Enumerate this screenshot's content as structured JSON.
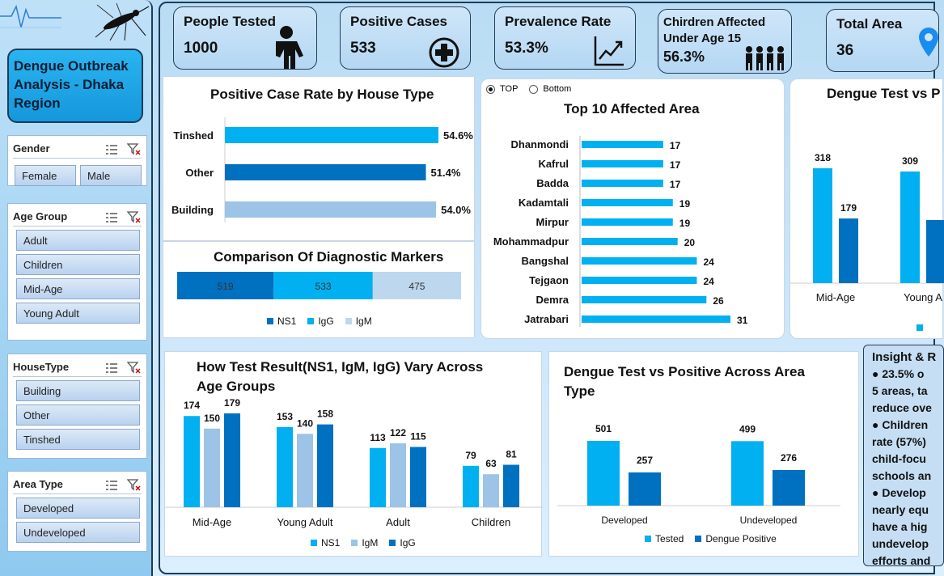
{
  "sidebar": {
    "title": "Dengue Outbreak Analysis - Dhaka Region",
    "slicers": {
      "gender": {
        "label": "Gender",
        "items": [
          "Female",
          "Male"
        ]
      },
      "age_group": {
        "label": "Age Group",
        "items": [
          "Adult",
          "Children",
          "Mid-Age",
          "Young Adult"
        ]
      },
      "house_type": {
        "label": "HouseType",
        "items": [
          "Building",
          "Other",
          "Tinshed"
        ]
      },
      "area_type": {
        "label": "Area Type",
        "items": [
          "Developed",
          "Undeveloped"
        ]
      }
    }
  },
  "kpis": {
    "people_tested": {
      "label": "People Tested",
      "value": "1000"
    },
    "positive_cases": {
      "label": "Positive Cases",
      "value": "533"
    },
    "prevalence": {
      "label": "Prevalence Rate",
      "value": "53.3%"
    },
    "children": {
      "label": "Chirdren Affected Under Age 15",
      "value": "56.3%"
    },
    "total_area": {
      "label": "Total Area",
      "value": "36"
    }
  },
  "colors": {
    "light": "#00b0f0",
    "dark": "#0070c0",
    "pale": "#9dc3e6",
    "paler": "#bdd7ee"
  },
  "charts": {
    "house_type": {
      "title": "Positive Case Rate by House Type"
    },
    "markers": {
      "title": "Comparison Of Diagnostic Markers",
      "legend": [
        "NS1",
        "IgG",
        "IgM"
      ]
    },
    "top_areas": {
      "title": "Top 10 Affected Area",
      "radio_top": "TOP",
      "radio_bottom": "Bottom"
    },
    "test_vs_positive_age": {
      "title": "Dengue Test vs P"
    },
    "age_groups": {
      "title_line1": "How Test Result(NS1, IgM, IgG) Vary Across",
      "title_line2": "Age Groups",
      "legend": [
        "NS1",
        "IgM",
        "IgG"
      ]
    },
    "area_type": {
      "title_line1": "Dengue Test vs Positive Across Area",
      "title_line2": "Type",
      "legend": [
        "Tested",
        "Dengue Positive"
      ]
    }
  },
  "insight": {
    "lines": [
      "Insight & R",
      "● 23.5% o",
      "5 areas, ta",
      "reduce ove",
      "● Children",
      "rate (57%)",
      "child-focu",
      "schools an",
      "● Develop",
      "nearly equ",
      "have a hig",
      "undevelop",
      "efforts and"
    ]
  },
  "chart_data": [
    {
      "type": "bar",
      "orientation": "horizontal",
      "title": "Positive Case Rate by House Type",
      "categories": [
        "Tinshed",
        "Other",
        "Building"
      ],
      "values": [
        54.6,
        51.4,
        54.0
      ],
      "value_labels": [
        "54.6%",
        "51.4%",
        "54.0%"
      ],
      "colors": [
        "#00b0f0",
        "#0070c0",
        "#9dc3e6"
      ]
    },
    {
      "type": "bar",
      "orientation": "horizontal-stacked",
      "title": "Comparison Of Diagnostic Markers",
      "series": [
        {
          "name": "NS1",
          "values": [
            519
          ]
        },
        {
          "name": "IgG",
          "values": [
            533
          ]
        },
        {
          "name": "IgM",
          "values": [
            475
          ]
        }
      ],
      "legend_position": "bottom"
    },
    {
      "type": "bar",
      "orientation": "horizontal",
      "title": "Top 10 Affected Area",
      "categories": [
        "Dhanmondi",
        "Kafrul",
        "Badda",
        "Kadamtali",
        "Mirpur",
        "Mohammadpur",
        "Bangshal",
        "Tejgaon",
        "Demra",
        "Jatrabari"
      ],
      "values": [
        17,
        17,
        17,
        19,
        19,
        20,
        24,
        24,
        26,
        31
      ]
    },
    {
      "type": "bar",
      "title": "Dengue Test vs P",
      "categories": [
        "Mid-Age",
        "Young A"
      ],
      "series": [
        {
          "values": [
            318,
            309
          ]
        },
        {
          "values": [
            179,
            null
          ]
        }
      ]
    },
    {
      "type": "bar",
      "title": "How Test Result(NS1, IgM, IgG) Vary Across Age Groups",
      "categories": [
        "Mid-Age",
        "Young Adult",
        "Adult",
        "Children"
      ],
      "series": [
        {
          "name": "NS1",
          "values": [
            174,
            153,
            113,
            79
          ]
        },
        {
          "name": "IgM",
          "values": [
            150,
            140,
            122,
            63
          ]
        },
        {
          "name": "IgG",
          "values": [
            179,
            158,
            115,
            81
          ]
        }
      ],
      "legend_position": "bottom"
    },
    {
      "type": "bar",
      "title": "Dengue Test vs Positive Across Area Type",
      "categories": [
        "Developed",
        "Undeveloped"
      ],
      "series": [
        {
          "name": "Tested",
          "values": [
            501,
            499
          ]
        },
        {
          "name": "Dengue Positive",
          "values": [
            257,
            276
          ]
        }
      ],
      "legend_position": "bottom"
    }
  ]
}
